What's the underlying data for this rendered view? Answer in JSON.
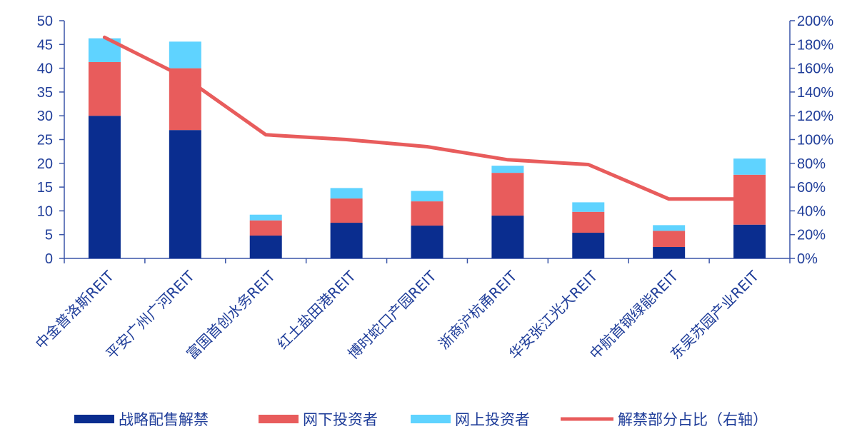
{
  "chart_data": {
    "type": "bar",
    "stacked": true,
    "categories": [
      "中金普洛斯REIT",
      "平安广州广河REIT",
      "富国首创水务REIT",
      "红土盐田港REIT",
      "博时蛇口产园REIT",
      "浙商沪杭甬REIT",
      "华安张江光大REIT",
      "中航首钢绿能REIT",
      "东吴苏园产业REIT"
    ],
    "series": [
      {
        "name": "战略配售解禁",
        "type": "bar",
        "axis": "left",
        "color": "#0a2d8f",
        "values": [
          30.0,
          27.0,
          4.8,
          7.5,
          6.9,
          9.0,
          5.4,
          2.4,
          7.1
        ]
      },
      {
        "name": "网下投资者",
        "type": "bar",
        "axis": "left",
        "color": "#e85c5c",
        "values": [
          11.3,
          13.0,
          3.2,
          5.1,
          5.1,
          9.0,
          4.4,
          3.4,
          10.5
        ]
      },
      {
        "name": "网上投资者",
        "type": "bar",
        "axis": "left",
        "color": "#5fd3ff",
        "values": [
          5.0,
          5.6,
          1.2,
          2.2,
          2.2,
          1.5,
          2.0,
          1.2,
          3.4
        ]
      },
      {
        "name": "解禁部分占比（右轴）",
        "type": "line",
        "axis": "right",
        "color": "#e85c5c",
        "values": [
          1.86,
          1.52,
          1.04,
          1.0,
          0.94,
          0.83,
          0.79,
          0.5,
          0.5
        ]
      }
    ],
    "yleft": {
      "min": 0,
      "max": 50,
      "step": 5,
      "ticks": [
        "0",
        "5",
        "10",
        "15",
        "20",
        "25",
        "30",
        "35",
        "40",
        "45",
        "50"
      ]
    },
    "yright": {
      "min": 0,
      "max": 2.0,
      "step": 0.2,
      "ticks": [
        "0%",
        "20%",
        "40%",
        "60%",
        "80%",
        "100%",
        "120%",
        "140%",
        "160%",
        "180%",
        "200%"
      ]
    },
    "grid": false,
    "legend_position": "bottom"
  }
}
